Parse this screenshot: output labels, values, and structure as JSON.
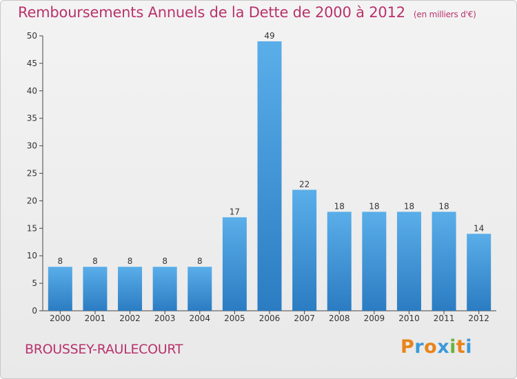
{
  "chart_data": {
    "type": "bar",
    "title": "Remboursements Annuels de la Dette de 2000 à 2012",
    "unit_note": "(en milliers d'€)",
    "categories": [
      "2000",
      "2001",
      "2002",
      "2003",
      "2004",
      "2005",
      "2006",
      "2007",
      "2008",
      "2009",
      "2010",
      "2011",
      "2012"
    ],
    "values": [
      8,
      8,
      8,
      8,
      8,
      17,
      49,
      22,
      18,
      18,
      18,
      18,
      14
    ],
    "ylim": [
      0,
      50
    ],
    "yticks": [
      0,
      5,
      10,
      15,
      20,
      25,
      30,
      35,
      40,
      45,
      50
    ],
    "xlabel": "",
    "ylabel": "",
    "grid": false,
    "bar_color": "#3d8fd6",
    "bar_color_light": "#5aaee9"
  },
  "footer": {
    "town": "BROUSSEY-RAULECOURT",
    "logo_text": "Proxiti",
    "logo_letters": [
      "P",
      "r",
      "o",
      "x",
      "i",
      "t",
      "i"
    ],
    "logo_colors": [
      "#e8841a",
      "#3a9ad9",
      "#e8841a",
      "#3a9ad9",
      "#6ab43c",
      "#e8841a",
      "#3a9ad9"
    ]
  },
  "colors": {
    "title": "#b8326b",
    "axis": "#333333",
    "label": "#333333"
  }
}
